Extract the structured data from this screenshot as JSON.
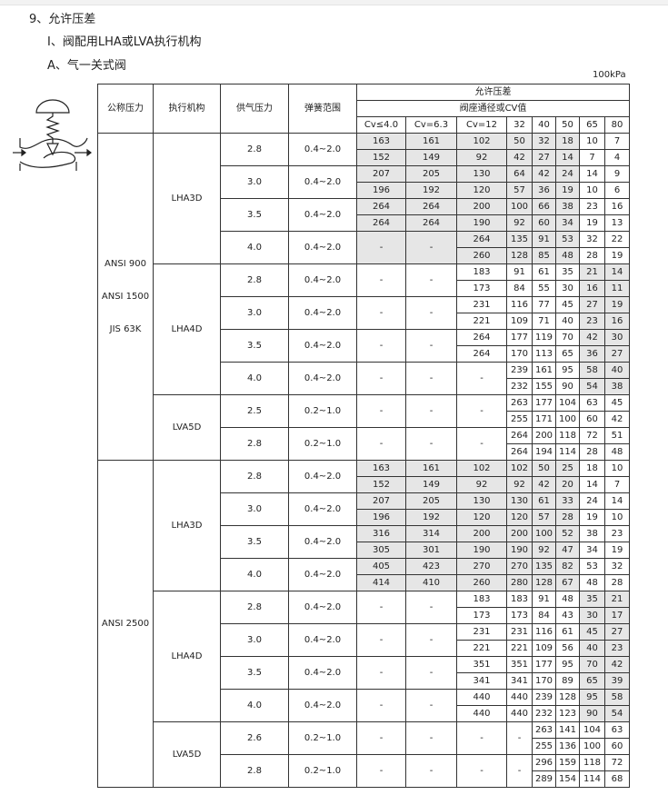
{
  "headings": {
    "h1": "9、允许压差",
    "h2": "Ⅰ、阀配用LHA或LVA执行机构",
    "h3": "A、气一关式阀"
  },
  "unit": "100kPa",
  "table": {
    "headers": {
      "nominal_pressure": "公称压力",
      "actuator": "执行机构",
      "supply_pressure": "供气压力",
      "spring_range": "弹簧范围",
      "allowable": "允许压差",
      "seat": "阀座通径或CV值",
      "cols": [
        "Cv≤4.0",
        "Cv=6.3",
        "Cv=12",
        "32",
        "40",
        "50",
        "65",
        "80"
      ]
    },
    "shade_color": "#e6e6e6",
    "blocks": [
      {
        "pressure": [
          "ANSI 900",
          "ANSI 1500",
          "JIS 63K"
        ],
        "actuators": [
          {
            "name": "LHA3D",
            "shaded": [
              0,
              1,
              2,
              3,
              4,
              5
            ],
            "groups": [
              {
                "supply": "2.8",
                "spring": "0.4~2.0",
                "rows": [
                  [
                    "163",
                    "161",
                    "102",
                    "50",
                    "32",
                    "18",
                    "10",
                    "7"
                  ],
                  [
                    "152",
                    "149",
                    "92",
                    "42",
                    "27",
                    "14",
                    "7",
                    "4"
                  ]
                ]
              },
              {
                "supply": "3.0",
                "spring": "0.4~2.0",
                "rows": [
                  [
                    "207",
                    "205",
                    "130",
                    "64",
                    "42",
                    "24",
                    "14",
                    "9"
                  ],
                  [
                    "196",
                    "192",
                    "120",
                    "57",
                    "36",
                    "19",
                    "10",
                    "6"
                  ]
                ]
              },
              {
                "supply": "3.5",
                "spring": "0.4~2.0",
                "rows": [
                  [
                    "264",
                    "264",
                    "200",
                    "100",
                    "66",
                    "38",
                    "23",
                    "16"
                  ],
                  [
                    "264",
                    "264",
                    "190",
                    "92",
                    "60",
                    "34",
                    "19",
                    "13"
                  ]
                ]
              },
              {
                "supply": "4.0",
                "spring": "0.4~2.0",
                "rows": [
                  [
                    "-",
                    "-",
                    "264",
                    "135",
                    "91",
                    "53",
                    "32",
                    "22"
                  ],
                  [
                    "-",
                    "-",
                    "260",
                    "128",
                    "85",
                    "48",
                    "28",
                    "19"
                  ]
                ]
              }
            ]
          },
          {
            "name": "LHA4D",
            "shaded": [
              6,
              7
            ],
            "groups": [
              {
                "supply": "2.8",
                "spring": "0.4~2.0",
                "rows": [
                  [
                    "-",
                    "-",
                    "183",
                    "91",
                    "61",
                    "35",
                    "21",
                    "14"
                  ],
                  [
                    "-",
                    "-",
                    "173",
                    "84",
                    "55",
                    "30",
                    "16",
                    "11"
                  ]
                ]
              },
              {
                "supply": "3.0",
                "spring": "0.4~2.0",
                "rows": [
                  [
                    "-",
                    "-",
                    "231",
                    "116",
                    "77",
                    "45",
                    "27",
                    "19"
                  ],
                  [
                    "-",
                    "-",
                    "221",
                    "109",
                    "71",
                    "40",
                    "23",
                    "16"
                  ]
                ]
              },
              {
                "supply": "3.5",
                "spring": "0.4~2.0",
                "rows": [
                  [
                    "-",
                    "-",
                    "264",
                    "177",
                    "119",
                    "70",
                    "42",
                    "30"
                  ],
                  [
                    "-",
                    "-",
                    "264",
                    "170",
                    "113",
                    "65",
                    "36",
                    "27"
                  ]
                ]
              },
              {
                "supply": "4.0",
                "spring": "0.4~2.0",
                "rows": [
                  [
                    "-",
                    "-",
                    "-",
                    "239",
                    "161",
                    "95",
                    "58",
                    "40"
                  ],
                  [
                    "-",
                    "-",
                    "-",
                    "232",
                    "155",
                    "90",
                    "54",
                    "38"
                  ]
                ]
              }
            ]
          },
          {
            "name": "LVA5D",
            "shaded": [],
            "groups": [
              {
                "supply": "2.5",
                "spring": "0.2~1.0",
                "rows": [
                  [
                    "-",
                    "-",
                    "-",
                    "263",
                    "177",
                    "104",
                    "63",
                    "45"
                  ],
                  [
                    "-",
                    "-",
                    "-",
                    "255",
                    "171",
                    "100",
                    "60",
                    "42"
                  ]
                ]
              },
              {
                "supply": "2.8",
                "spring": "0.2~1.0",
                "rows": [
                  [
                    "-",
                    "-",
                    "-",
                    "264",
                    "200",
                    "118",
                    "72",
                    "51"
                  ],
                  [
                    "-",
                    "-",
                    "-",
                    "264",
                    "194",
                    "114",
                    "28",
                    "48"
                  ]
                ]
              }
            ]
          }
        ]
      },
      {
        "pressure": [
          "ANSI 2500"
        ],
        "actuators": [
          {
            "name": "LHA3D",
            "shaded": [
              0,
              1,
              2,
              3,
              4,
              5
            ],
            "groups": [
              {
                "supply": "2.8",
                "spring": "0.4~2.0",
                "rows": [
                  [
                    "163",
                    "161",
                    "102",
                    "102",
                    "50",
                    "25",
                    "18",
                    "10"
                  ],
                  [
                    "152",
                    "149",
                    "92",
                    "92",
                    "42",
                    "20",
                    "14",
                    "7"
                  ]
                ]
              },
              {
                "supply": "3.0",
                "spring": "0.4~2.0",
                "rows": [
                  [
                    "207",
                    "205",
                    "130",
                    "130",
                    "61",
                    "33",
                    "24",
                    "14"
                  ],
                  [
                    "196",
                    "192",
                    "120",
                    "120",
                    "57",
                    "28",
                    "19",
                    "10"
                  ]
                ]
              },
              {
                "supply": "3.5",
                "spring": "0.4~2.0",
                "rows": [
                  [
                    "316",
                    "314",
                    "200",
                    "200",
                    "100",
                    "52",
                    "38",
                    "23"
                  ],
                  [
                    "305",
                    "301",
                    "190",
                    "190",
                    "92",
                    "47",
                    "34",
                    "19"
                  ]
                ]
              },
              {
                "supply": "4.0",
                "spring": "0.4~2.0",
                "rows": [
                  [
                    "405",
                    "423",
                    "270",
                    "270",
                    "135",
                    "82",
                    "53",
                    "32"
                  ],
                  [
                    "414",
                    "410",
                    "260",
                    "280",
                    "128",
                    "67",
                    "48",
                    "28"
                  ]
                ]
              }
            ]
          },
          {
            "name": "LHA4D",
            "shaded": [
              6,
              7
            ],
            "groups": [
              {
                "supply": "2.8",
                "spring": "0.4~2.0",
                "rows": [
                  [
                    "-",
                    "-",
                    "183",
                    "183",
                    "91",
                    "48",
                    "35",
                    "21"
                  ],
                  [
                    "-",
                    "-",
                    "173",
                    "173",
                    "84",
                    "43",
                    "30",
                    "17"
                  ]
                ]
              },
              {
                "supply": "3.0",
                "spring": "0.4~2.0",
                "rows": [
                  [
                    "-",
                    "-",
                    "231",
                    "231",
                    "116",
                    "61",
                    "45",
                    "27"
                  ],
                  [
                    "-",
                    "-",
                    "221",
                    "221",
                    "109",
                    "56",
                    "40",
                    "23"
                  ]
                ]
              },
              {
                "supply": "3.5",
                "spring": "0.4~2.0",
                "rows": [
                  [
                    "-",
                    "-",
                    "351",
                    "351",
                    "177",
                    "95",
                    "70",
                    "42"
                  ],
                  [
                    "-",
                    "-",
                    "341",
                    "341",
                    "170",
                    "89",
                    "65",
                    "39"
                  ]
                ]
              },
              {
                "supply": "4.0",
                "spring": "0.4~2.0",
                "rows": [
                  [
                    "-",
                    "-",
                    "440",
                    "440",
                    "239",
                    "128",
                    "95",
                    "58"
                  ],
                  [
                    "-",
                    "-",
                    "440",
                    "440",
                    "232",
                    "123",
                    "90",
                    "54"
                  ]
                ]
              }
            ]
          },
          {
            "name": "LVA5D",
            "shaded": [],
            "groups": [
              {
                "supply": "2.6",
                "spring": "0.2~1.0",
                "rows": [
                  [
                    "-",
                    "-",
                    "-",
                    "-",
                    "263",
                    "141",
                    "104",
                    "63"
                  ],
                  [
                    "-",
                    "-",
                    "-",
                    "-",
                    "255",
                    "136",
                    "100",
                    "60"
                  ]
                ]
              },
              {
                "supply": "2.8",
                "spring": "0.2~1.0",
                "rows": [
                  [
                    "-",
                    "-",
                    "-",
                    "-",
                    "296",
                    "159",
                    "118",
                    "72"
                  ],
                  [
                    "-",
                    "-",
                    "-",
                    "-",
                    "289",
                    "154",
                    "114",
                    "68"
                  ]
                ]
              }
            ]
          }
        ]
      }
    ]
  }
}
